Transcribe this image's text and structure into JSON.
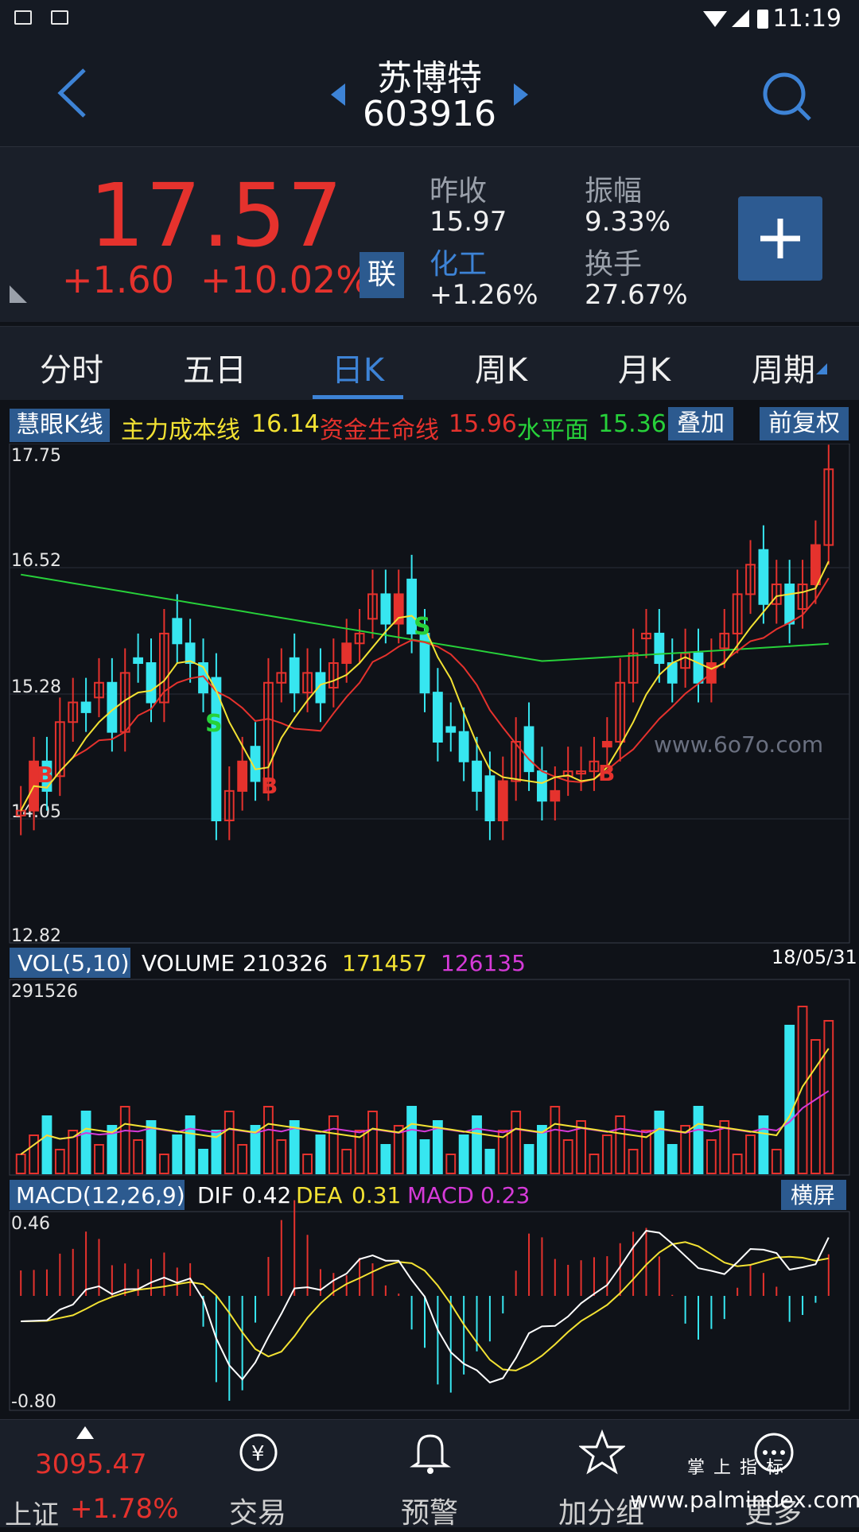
{
  "status_bar": {
    "time": "11:19"
  },
  "header": {
    "name": "苏博特",
    "code": "603916"
  },
  "quote": {
    "price": "17.57",
    "change": "+1.60",
    "change_pct": "+10.02%",
    "lian_label": "联",
    "prev_close_label": "昨收",
    "prev_close": "15.97",
    "amplitude_label": "振幅",
    "amplitude": "9.33%",
    "sector_label": "化工",
    "sector_change": "+1.26%",
    "turnover_label": "换手",
    "turnover": "27.67%"
  },
  "tabs": [
    "分时",
    "五日",
    "日K",
    "周K",
    "月K",
    "周期"
  ],
  "active_tab": "日K",
  "kline_strip": {
    "tag": "慧眼K线",
    "main_cost_label": "主力成本线",
    "main_cost": "16.14",
    "life_label": "资金生命线",
    "life": "15.96",
    "level_label": "水平面",
    "level": "15.36",
    "overlay_btn": "叠加",
    "adjust_btn": "前复权"
  },
  "main_chart": {
    "y_labels": [
      "17.75",
      "16.52",
      "15.28",
      "14.05",
      "12.82"
    ],
    "watermark": "www.6o7o.com",
    "signals": [
      "S",
      "B",
      "S",
      "B",
      "B"
    ]
  },
  "vol_panel": {
    "tag": "VOL(5,10)",
    "volume_label": "VOLUME",
    "volume": "210326",
    "ma5": "171457",
    "ma10": "126135",
    "date": "18/05/31",
    "max_label": "291526"
  },
  "macd_panel": {
    "tag": "MACD(12,26,9)",
    "dif_label": "DIF",
    "dif": "0.42",
    "dea_label": "DEA",
    "dea": "0.31",
    "macd_label": "MACD",
    "macd": "0.23",
    "landscape_btn": "横屏",
    "top_label": "0.46",
    "bottom_label": "-0.80"
  },
  "bottom_nav": {
    "index_value": "3095.47",
    "index_name": "上证",
    "index_change": "+1.78%",
    "trade": "交易",
    "alert": "预警",
    "watchlist": "加分组",
    "more": "更多"
  },
  "watermark_footer": {
    "brand": "掌 上 指 标",
    "url": "www.palmindex.com"
  },
  "colors": {
    "up": "#e5322d",
    "down": "#37e6f0",
    "accent": "#2c5a8f",
    "yellow": "#f3e233",
    "green": "#27d13a",
    "purple": "#d53ad8"
  }
}
